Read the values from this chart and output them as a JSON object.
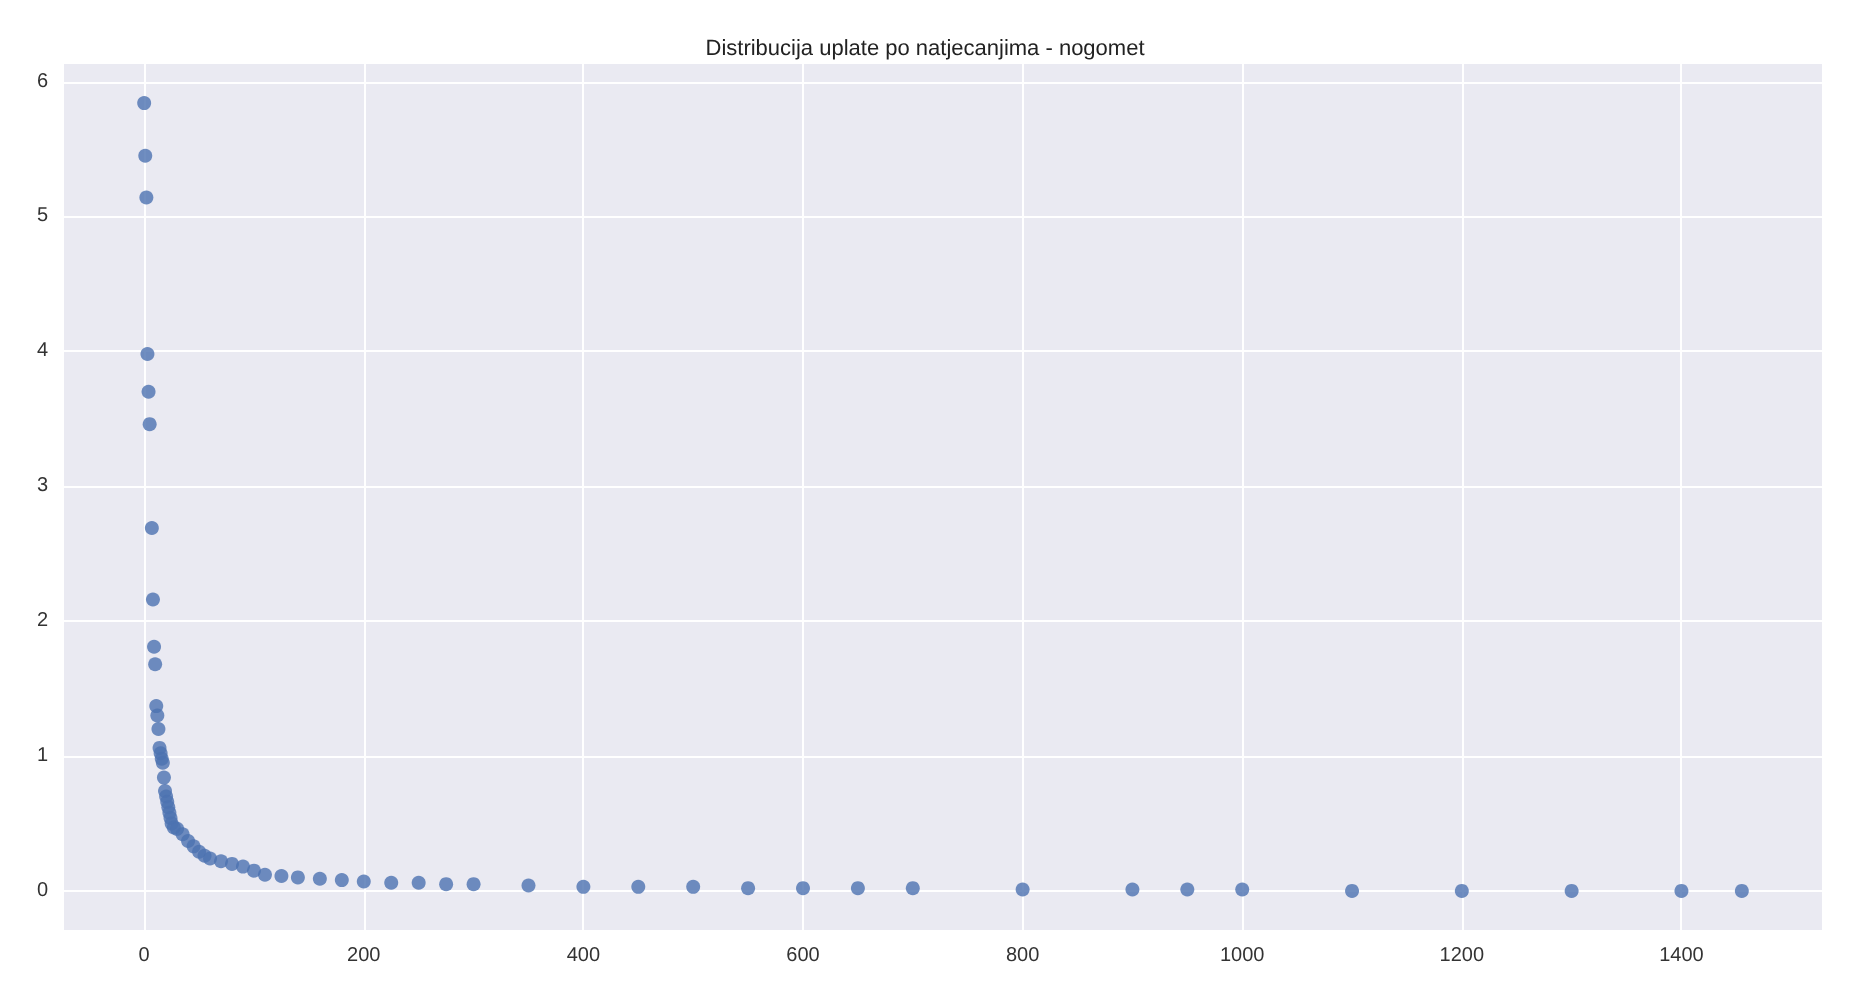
{
  "chart_data": {
    "type": "scatter",
    "title": "Distribucija uplate po natjecanjima - nogomet",
    "x": [
      0,
      1,
      2,
      3,
      4,
      5,
      7,
      8,
      9,
      10,
      11,
      12,
      13,
      14,
      15,
      16,
      17,
      18,
      19,
      20,
      21,
      22,
      23,
      24,
      25,
      27,
      30,
      35,
      40,
      45,
      50,
      55,
      60,
      70,
      80,
      90,
      100,
      110,
      125,
      140,
      160,
      180,
      200,
      225,
      250,
      275,
      300,
      350,
      400,
      450,
      500,
      550,
      600,
      650,
      700,
      800,
      900,
      950,
      1000,
      1100,
      1200,
      1300,
      1400,
      1455
    ],
    "values": [
      5.84,
      5.45,
      5.14,
      3.98,
      3.7,
      3.46,
      2.69,
      2.16,
      1.81,
      1.68,
      1.37,
      1.3,
      1.2,
      1.06,
      1.02,
      0.98,
      0.95,
      0.84,
      0.74,
      0.7,
      0.66,
      0.62,
      0.58,
      0.54,
      0.5,
      0.47,
      0.46,
      0.42,
      0.37,
      0.33,
      0.29,
      0.26,
      0.24,
      0.22,
      0.2,
      0.18,
      0.15,
      0.12,
      0.11,
      0.1,
      0.09,
      0.08,
      0.07,
      0.06,
      0.06,
      0.05,
      0.05,
      0.04,
      0.03,
      0.03,
      0.03,
      0.02,
      0.02,
      0.02,
      0.02,
      0.01,
      0.01,
      0.01,
      0.01,
      0,
      0,
      0,
      0,
      0
    ],
    "color": "#4c72b0",
    "marker": "circle",
    "xlim": [
      -73,
      1528
    ],
    "ylim": [
      -0.29,
      6.13
    ],
    "xticks": [
      0,
      200,
      400,
      600,
      800,
      1000,
      1200,
      1400
    ],
    "yticks": [
      0,
      1,
      2,
      3,
      4,
      5,
      6
    ],
    "grid": true
  }
}
